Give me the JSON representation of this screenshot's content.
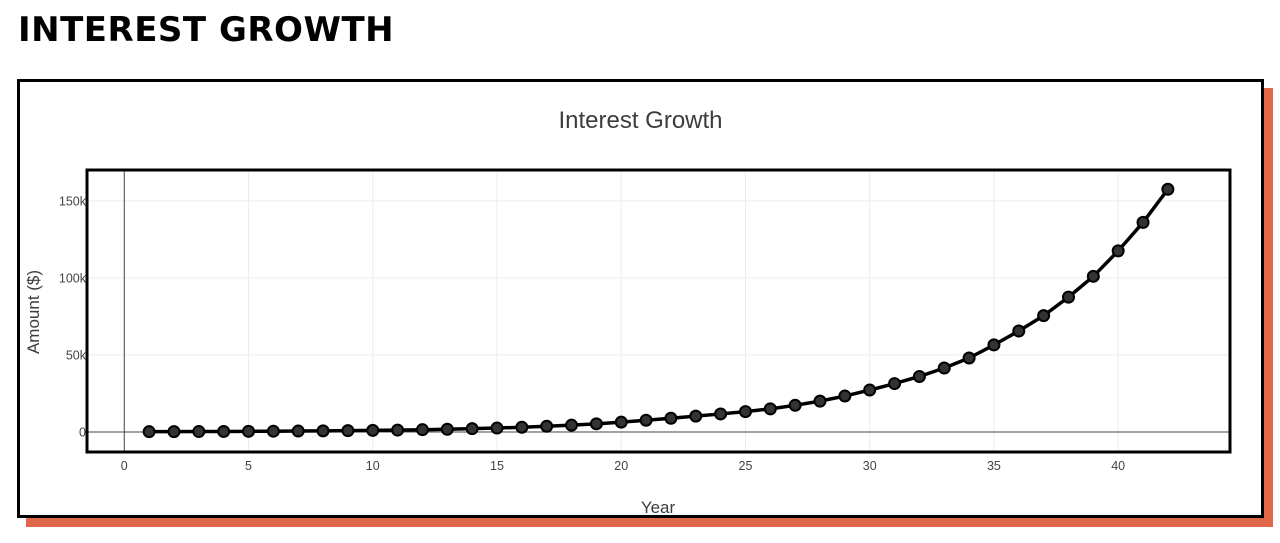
{
  "page": {
    "heading": "INTEREST GROWTH"
  },
  "colors": {
    "card_shadow": "#e0674a",
    "line": "#000000",
    "marker": "#333333"
  },
  "chart_data": {
    "type": "line",
    "title": "Interest Growth",
    "xlabel": "Year",
    "ylabel": "Amount ($)",
    "xlim": [
      -1.5,
      44.5
    ],
    "ylim": [
      -13000,
      170000
    ],
    "x_ticks": [
      0,
      5,
      10,
      15,
      20,
      25,
      30,
      35,
      40
    ],
    "y_ticks": [
      0,
      50000,
      100000,
      150000
    ],
    "y_tick_labels": [
      "0",
      "50k",
      "100k",
      "150k"
    ],
    "grid": true,
    "legend": "none",
    "markers": true,
    "series": [
      {
        "x": [
          1,
          2,
          3,
          4,
          5,
          6,
          7,
          8,
          9,
          10,
          11,
          12,
          13,
          14,
          15,
          16,
          17,
          18,
          19,
          20,
          21,
          22,
          23,
          24,
          25,
          26,
          27,
          28,
          29,
          30,
          31,
          32,
          33,
          34,
          35,
          36,
          37,
          38,
          39,
          40,
          41,
          42
        ],
        "y": [
          200,
          240,
          290,
          340,
          410,
          500,
          590,
          710,
          860,
          1030,
          1230,
          1480,
          1770,
          2130,
          2550,
          3060,
          3680,
          4410,
          5290,
          6350,
          7620,
          8900,
          10300,
          11700,
          13200,
          15000,
          17300,
          20000,
          23300,
          27200,
          31400,
          36000,
          41500,
          48000,
          56500,
          65500,
          75500,
          87500,
          101000,
          117500,
          136000,
          157500
        ]
      }
    ]
  }
}
